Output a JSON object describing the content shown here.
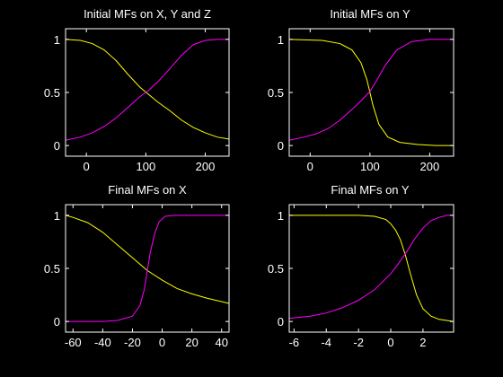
{
  "figure": {
    "background": "#000000",
    "axis_color": "#ffffff"
  },
  "chart_data": [
    {
      "type": "line",
      "title": "Initial MFs on X, Y and Z",
      "xlabel": "",
      "ylabel": "",
      "xlim": [
        -35,
        240
      ],
      "ylim": [
        -0.1,
        1.1
      ],
      "xticks": [
        0,
        100,
        200
      ],
      "yticks": [
        0,
        0.5,
        1
      ],
      "xtick_labels": [
        "0",
        "100",
        "200"
      ],
      "ytick_labels": [
        "0",
        "0.5",
        "1"
      ],
      "grid": false,
      "series": [
        {
          "color": "#ffff00",
          "x": [
            -35,
            -10,
            10,
            30,
            50,
            70,
            90,
            105,
            120,
            140,
            160,
            180,
            200,
            220,
            240
          ],
          "y": [
            1,
            0.99,
            0.96,
            0.9,
            0.8,
            0.67,
            0.55,
            0.48,
            0.41,
            0.33,
            0.24,
            0.17,
            0.12,
            0.08,
            0.06
          ]
        },
        {
          "color": "#ff00ff",
          "x": [
            -35,
            -10,
            10,
            30,
            50,
            70,
            90,
            105,
            120,
            140,
            160,
            180,
            200,
            220,
            240
          ],
          "y": [
            0.05,
            0.08,
            0.12,
            0.18,
            0.26,
            0.36,
            0.46,
            0.52,
            0.6,
            0.72,
            0.85,
            0.95,
            0.99,
            1,
            1
          ]
        }
      ]
    },
    {
      "type": "line",
      "title": "Initial MFs on Y",
      "xlabel": "",
      "ylabel": "",
      "xlim": [
        -35,
        240
      ],
      "ylim": [
        -0.1,
        1.1
      ],
      "xticks": [
        0,
        100,
        200
      ],
      "yticks": [
        0,
        0.5,
        1
      ],
      "xtick_labels": [
        "0",
        "100",
        "200"
      ],
      "ytick_labels": [
        "0",
        "0.5",
        "1"
      ],
      "grid": false,
      "series": [
        {
          "color": "#ffff00",
          "x": [
            -35,
            20,
            50,
            70,
            85,
            95,
            100,
            105,
            115,
            130,
            150,
            180,
            210,
            240
          ],
          "y": [
            1,
            0.99,
            0.96,
            0.9,
            0.78,
            0.62,
            0.5,
            0.38,
            0.2,
            0.08,
            0.03,
            0.01,
            0,
            0
          ]
        },
        {
          "color": "#ff00ff",
          "x": [
            -35,
            -10,
            10,
            30,
            50,
            70,
            85,
            95,
            100,
            110,
            125,
            145,
            170,
            200,
            240
          ],
          "y": [
            0.05,
            0.08,
            0.11,
            0.16,
            0.24,
            0.34,
            0.42,
            0.48,
            0.51,
            0.6,
            0.75,
            0.9,
            0.98,
            1,
            1
          ]
        }
      ]
    },
    {
      "type": "line",
      "title": "Final MFs on X",
      "xlabel": "",
      "ylabel": "",
      "xlim": [
        -65,
        45
      ],
      "ylim": [
        -0.1,
        1.1
      ],
      "xticks": [
        -60,
        -40,
        -20,
        0,
        20,
        40
      ],
      "yticks": [
        0,
        0.5,
        1
      ],
      "xtick_labels": [
        "-60",
        "-40",
        "-20",
        "0",
        "20",
        "40"
      ],
      "ytick_labels": [
        "0",
        "0.5",
        "1"
      ],
      "grid": false,
      "series": [
        {
          "color": "#ffff00",
          "x": [
            -65,
            -60,
            -50,
            -40,
            -30,
            -20,
            -10,
            0,
            10,
            20,
            30,
            45
          ],
          "y": [
            1,
            0.98,
            0.93,
            0.84,
            0.72,
            0.6,
            0.48,
            0.39,
            0.31,
            0.26,
            0.22,
            0.17
          ]
        },
        {
          "color": "#ff00ff",
          "x": [
            -65,
            -40,
            -30,
            -20,
            -15,
            -12,
            -10,
            -8,
            -5,
            -2,
            2,
            8,
            45
          ],
          "y": [
            0,
            0,
            0.01,
            0.05,
            0.15,
            0.3,
            0.48,
            0.65,
            0.83,
            0.94,
            0.99,
            1,
            1
          ]
        }
      ]
    },
    {
      "type": "line",
      "title": "Final MFs on Y",
      "xlabel": "",
      "ylabel": "",
      "xlim": [
        -6.3,
        3.9
      ],
      "ylim": [
        -0.1,
        1.1
      ],
      "xticks": [
        -6,
        -4,
        -2,
        0,
        2
      ],
      "yticks": [
        0,
        0.5,
        1
      ],
      "xtick_labels": [
        "-6",
        "-4",
        "-2",
        "0",
        "2"
      ],
      "ytick_labels": [
        "0",
        "0.5",
        "1"
      ],
      "grid": false,
      "series": [
        {
          "color": "#ffff00",
          "x": [
            -6.3,
            -2,
            -1,
            -0.3,
            0,
            0.3,
            0.6,
            0.9,
            1.2,
            1.6,
            2,
            2.5,
            3,
            3.9
          ],
          "y": [
            1,
            1,
            0.99,
            0.96,
            0.92,
            0.86,
            0.77,
            0.63,
            0.46,
            0.25,
            0.12,
            0.05,
            0.02,
            0
          ]
        },
        {
          "color": "#ff00ff",
          "x": [
            -6.3,
            -5,
            -4,
            -3,
            -2,
            -1,
            0,
            0.5,
            1,
            1.5,
            2,
            2.5,
            3,
            3.5,
            3.9
          ],
          "y": [
            0.03,
            0.05,
            0.08,
            0.13,
            0.2,
            0.3,
            0.45,
            0.55,
            0.66,
            0.78,
            0.88,
            0.95,
            0.98,
            1,
            1
          ]
        }
      ]
    }
  ]
}
